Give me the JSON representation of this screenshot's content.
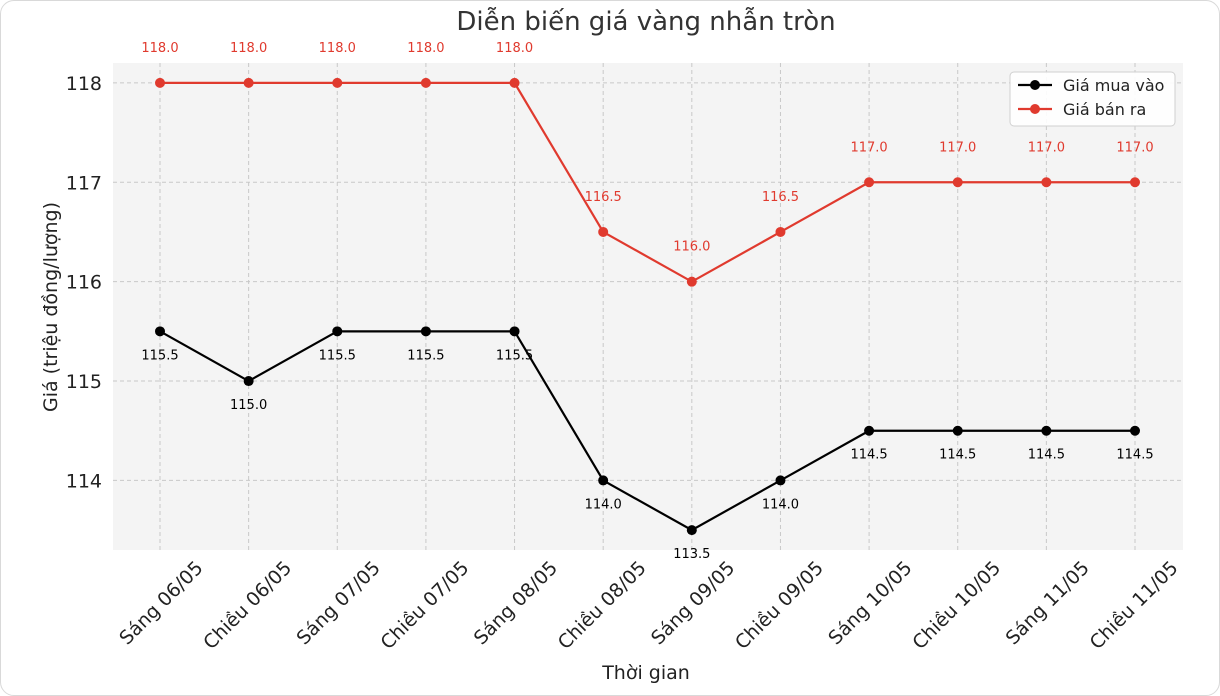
{
  "chart_data": {
    "type": "line",
    "title": "Diễn biến giá vàng nhẫn tròn",
    "xlabel": "Thời gian",
    "ylabel": "Giá (triệu đồng/lượng)",
    "categories": [
      "Sáng 06/05",
      "Chiều 06/05",
      "Sáng 07/05",
      "Chiều 07/05",
      "Sáng 08/05",
      "Chiều 08/05",
      "Sáng 09/05",
      "Chiều 09/05",
      "Sáng 10/05",
      "Chiều 10/05",
      "Sáng 11/05",
      "Chiều 11/05"
    ],
    "yticks": [
      "114",
      "115",
      "116",
      "117",
      "118"
    ],
    "ylim": [
      113.3,
      118.2
    ],
    "grid": true,
    "legend_position": "top-right",
    "series": [
      {
        "name": "Giá mua vào",
        "color": "#000000",
        "values": [
          115.5,
          115.0,
          115.5,
          115.5,
          115.5,
          114.0,
          113.5,
          114.0,
          114.5,
          114.5,
          114.5,
          114.5
        ],
        "labels": [
          "115.5",
          "115.0",
          "115.5",
          "115.5",
          "115.5",
          "114.0",
          "113.5",
          "114.0",
          "114.5",
          "114.5",
          "114.5",
          "114.5"
        ]
      },
      {
        "name": "Giá bán ra",
        "color": "#e03a2e",
        "values": [
          118.0,
          118.0,
          118.0,
          118.0,
          118.0,
          116.5,
          116.0,
          116.5,
          117.0,
          117.0,
          117.0,
          117.0
        ],
        "labels": [
          "118.0",
          "118.0",
          "118.0",
          "118.0",
          "118.0",
          "116.5",
          "116.0",
          "116.5",
          "117.0",
          "117.0",
          "117.0",
          "117.0"
        ]
      }
    ]
  }
}
